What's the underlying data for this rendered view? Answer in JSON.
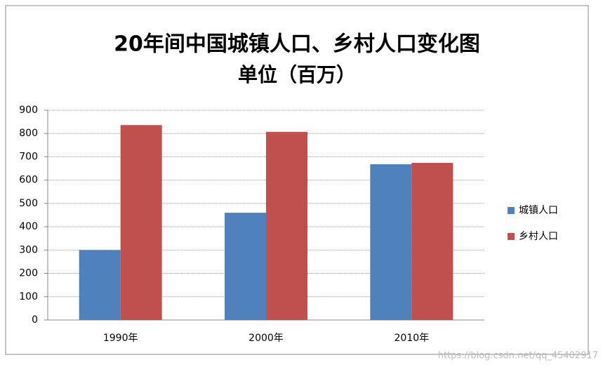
{
  "chart_data": {
    "type": "bar",
    "title": "20年间中国城镇人口、乡村人口变化图",
    "subtitle": "单位（百万）",
    "categories": [
      "1990年",
      "2000年",
      "2010年"
    ],
    "series": [
      {
        "name": "城镇人口",
        "color": "#4f81bd",
        "values": [
          300,
          460,
          668
        ]
      },
      {
        "name": "乡村人口",
        "color": "#c0504d",
        "values": [
          836,
          807,
          674
        ]
      }
    ],
    "ylim": [
      0,
      900
    ],
    "yticks": [
      0,
      100,
      200,
      300,
      400,
      500,
      600,
      700,
      800,
      900
    ],
    "grid": true,
    "legend": "right"
  },
  "watermark": "https://blog.csdn.net/qq_45402917"
}
